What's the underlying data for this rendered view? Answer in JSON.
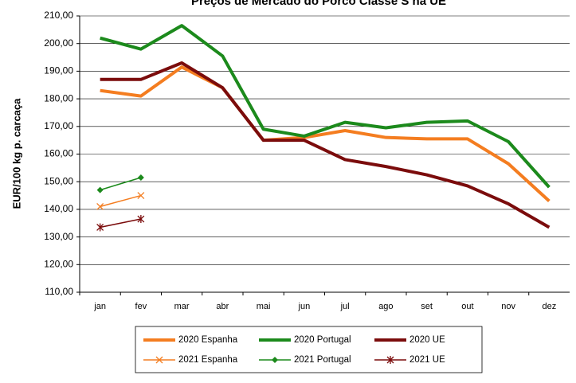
{
  "chart_data": {
    "type": "line",
    "title": "Preços de Mercado do Porco Classe S na UE",
    "y_label": "EUR/100 kg p. carcaça",
    "categories": [
      "jan",
      "fev",
      "mar",
      "abr",
      "mai",
      "jun",
      "jul",
      "ago",
      "set",
      "out",
      "nov",
      "dez"
    ],
    "ylim": [
      110,
      210
    ],
    "yticks": [
      {
        "value": 110,
        "label": "110,00"
      },
      {
        "value": 120,
        "label": "120,00"
      },
      {
        "value": 130,
        "label": "130,00"
      },
      {
        "value": 140,
        "label": "140,00"
      },
      {
        "value": 150,
        "label": "150,00"
      },
      {
        "value": 160,
        "label": "160,00"
      },
      {
        "value": 170,
        "label": "170,00"
      },
      {
        "value": 180,
        "label": "180,00"
      },
      {
        "value": 190,
        "label": "190,00"
      },
      {
        "value": 200,
        "label": "200,00"
      },
      {
        "value": 210,
        "label": "210,00"
      }
    ],
    "grid": true,
    "series": [
      {
        "name": "2020 Espanha",
        "color": "#f47d20",
        "width": 4,
        "marker": "none",
        "values": [
          183,
          181,
          191.5,
          184,
          165,
          166,
          168.5,
          166,
          165.5,
          165.5,
          156.5,
          143
        ]
      },
      {
        "name": "2020 Portugal",
        "color": "#1c8a1c",
        "width": 4,
        "marker": "none",
        "values": [
          202,
          198,
          206.5,
          195.5,
          169,
          166.5,
          171.5,
          169.5,
          171.5,
          172,
          164.5,
          148
        ]
      },
      {
        "name": "2020 UE",
        "color": "#7b0c0c",
        "width": 4,
        "marker": "none",
        "values": [
          187,
          187,
          193,
          184,
          165,
          165,
          158,
          155.5,
          152.5,
          148.5,
          142,
          133.5
        ]
      },
      {
        "name": "2021 Espanha",
        "color": "#f47d20",
        "width": 1.5,
        "marker": "x",
        "values": [
          141,
          145,
          null,
          null,
          null,
          null,
          null,
          null,
          null,
          null,
          null,
          null
        ]
      },
      {
        "name": "2021 Portugal",
        "color": "#1c8a1c",
        "width": 1.5,
        "marker": "diamond",
        "values": [
          147,
          151.5,
          null,
          null,
          null,
          null,
          null,
          null,
          null,
          null,
          null,
          null
        ]
      },
      {
        "name": "2021 UE",
        "color": "#7b0c0c",
        "width": 1.5,
        "marker": "star",
        "values": [
          133.5,
          136.5,
          null,
          null,
          null,
          null,
          null,
          null,
          null,
          null,
          null,
          null
        ]
      }
    ]
  }
}
